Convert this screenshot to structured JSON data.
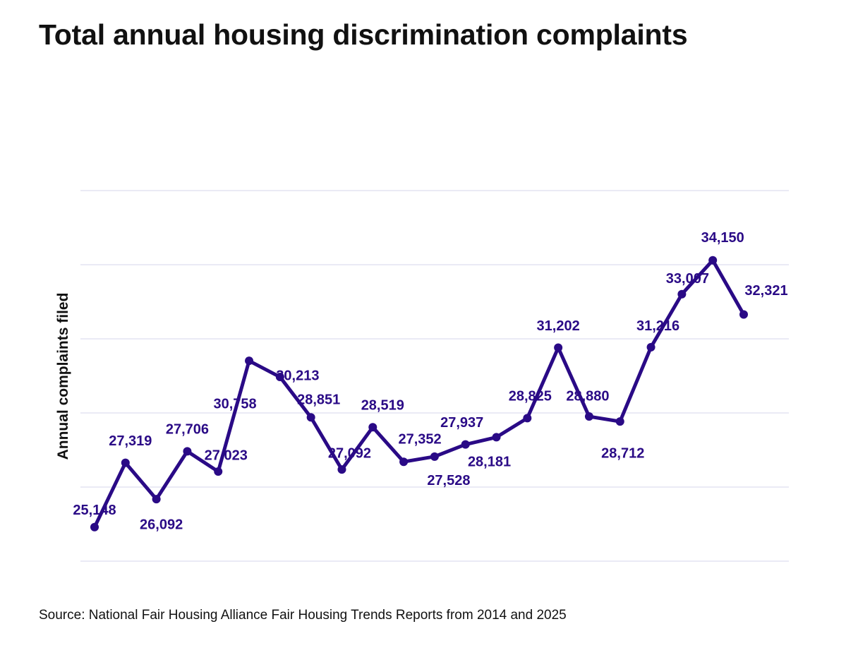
{
  "title": "Total annual housing discrimination complaints",
  "source": "Source: National Fair Housing Alliance Fair Housing Trends Reports from 2014 and 2025",
  "colors": {
    "line": "#2a0a86",
    "grid": "#e4e4f2",
    "text": "#111111"
  },
  "chart_data": {
    "type": "line",
    "title": "Total annual housing discrimination complaints",
    "xlabel": "",
    "ylabel": "Annual complaints filed",
    "grid": true,
    "ylim": [
      24000,
      36500
    ],
    "series": [
      {
        "name": "Annual complaints filed",
        "values": [
          25148,
          27319,
          26092,
          27706,
          27023,
          30758,
          30213,
          28851,
          27092,
          28519,
          27352,
          27528,
          27937,
          28181,
          28825,
          31202,
          28880,
          28712,
          31216,
          33007,
          34150,
          32321
        ],
        "labels": [
          "25,148",
          "27,319",
          "26,092",
          "27,706",
          "27,023",
          "30,758",
          "30,213",
          "28,851",
          "27,092",
          "28,519",
          "27,352",
          "27,528",
          "27,937",
          "28,181",
          "28,825",
          "31,202",
          "28,880",
          "28,712",
          "31,216",
          "33,007",
          "34,150",
          "32,321"
        ]
      }
    ]
  }
}
